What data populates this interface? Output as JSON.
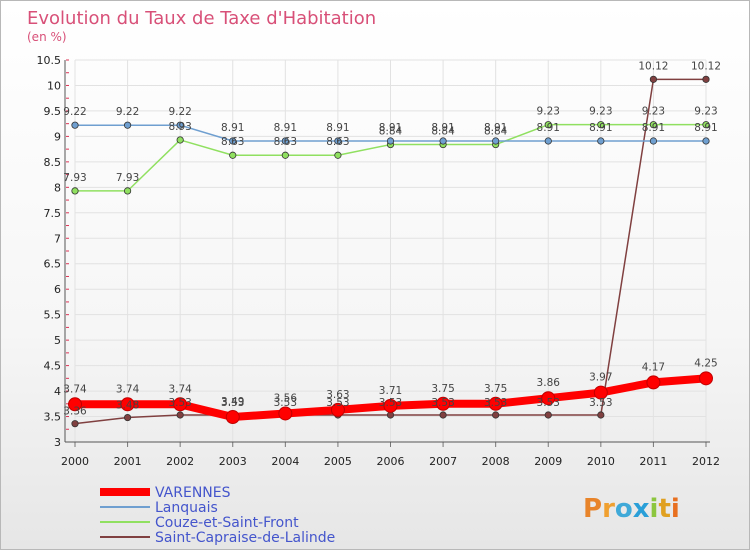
{
  "chart_data": {
    "type": "line",
    "title": "Evolution du Taux de Taxe d'Habitation",
    "subtitle": "(en %)",
    "x": [
      "2000",
      "2001",
      "2002",
      "2003",
      "2004",
      "2005",
      "2006",
      "2007",
      "2008",
      "2009",
      "2010",
      "2011",
      "2012"
    ],
    "yticks": [
      "3",
      "3.5",
      "4",
      "4.5",
      "5",
      "5.5",
      "6",
      "6.5",
      "7",
      "7.5",
      "8",
      "8.5",
      "9",
      "9.5",
      "10",
      "10.5"
    ],
    "ylim": [
      3,
      10.5
    ],
    "legend_position": "bottom-left",
    "series": [
      {
        "name": "VARENNES",
        "color": "#ff0000",
        "values": [
          3.74,
          3.74,
          3.74,
          3.49,
          3.56,
          3.63,
          3.71,
          3.75,
          3.75,
          3.86,
          3.97,
          4.17,
          4.25
        ],
        "labels": [
          "3.74",
          "3.74",
          "3.74",
          "3.49",
          "3.56",
          "3.63",
          "3.71",
          "3.75",
          "3.75",
          "3.86",
          "3.97",
          "4.17",
          "4.25"
        ]
      },
      {
        "name": "Lanquais",
        "color": "#6f9fd0",
        "values": [
          9.22,
          9.22,
          9.22,
          8.91,
          8.91,
          8.91,
          8.91,
          8.91,
          8.91,
          8.91,
          8.91,
          8.91,
          8.91
        ],
        "labels": [
          "9.22",
          "9.22",
          "9.22",
          "8.91",
          "8.91",
          "8.91",
          "8.91",
          "8.91",
          "8.91",
          "8.91",
          "8.91",
          "8.91",
          "8.91"
        ]
      },
      {
        "name": "Couze-et-Saint-Front",
        "color": "#90e060",
        "values": [
          7.93,
          7.93,
          8.93,
          8.63,
          8.63,
          8.63,
          8.84,
          8.84,
          8.84,
          9.23,
          9.23,
          9.23,
          9.23
        ],
        "labels": [
          "7.93",
          "7.93",
          "8.93",
          "8.63",
          "8.63",
          "8.63",
          "8.84",
          "8.84",
          "8.84",
          "9.23",
          "9.23",
          "9.23",
          "9.23"
        ]
      },
      {
        "name": "Saint-Capraise-de-Lalinde",
        "color": "#804040",
        "values": [
          3.36,
          3.48,
          3.53,
          3.53,
          3.53,
          3.53,
          3.53,
          3.53,
          3.53,
          3.53,
          3.53,
          10.12,
          10.12
        ],
        "labels": [
          "3.36",
          "3.48",
          "3.53",
          "3.53",
          "3.53",
          "3.53",
          "3.53",
          "3.53",
          "3.53",
          "3.53",
          "3.53",
          "10.12",
          "10.12"
        ]
      }
    ]
  },
  "logo": {
    "text": "Proxiti",
    "letters": [
      "P",
      "r",
      "o",
      "x",
      "i",
      "t",
      "i"
    ]
  }
}
